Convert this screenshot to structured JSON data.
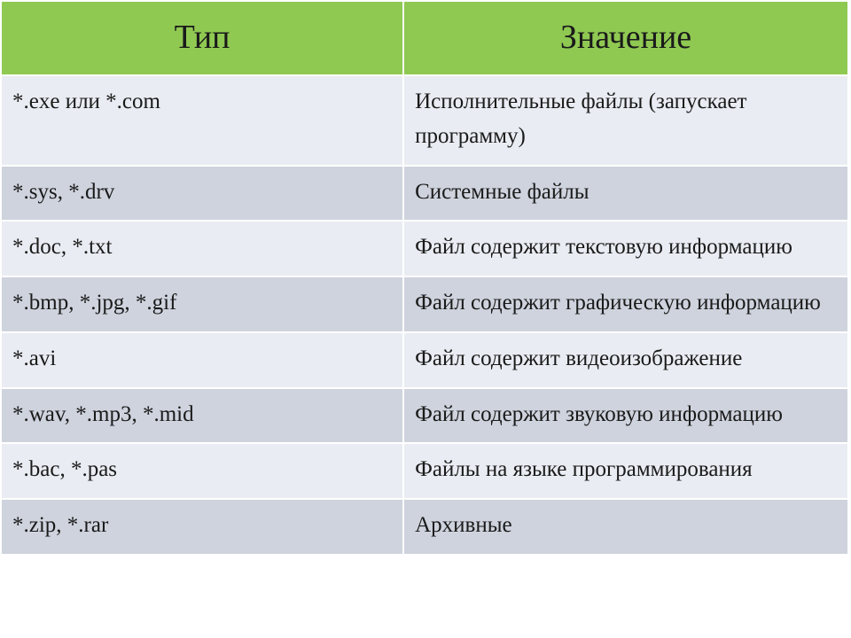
{
  "table": {
    "type": "table",
    "header_bg_color": "#8fc952",
    "header_text_color": "#1a1a1a",
    "row_odd_bg_color": "#e9ecf2",
    "row_even_bg_color": "#ced3dd",
    "cell_text_color": "#1a1a1a",
    "border_color": "#ffffff",
    "header_fontsize": 38,
    "cell_fontsize": 25,
    "column_widths_pct": [
      47.5,
      52.5
    ],
    "columns": [
      "Тип",
      "Значение"
    ],
    "rows": [
      [
        "*.exe или *.com",
        "Исполнительные файлы (запускает программу)"
      ],
      [
        "*.sys, *.drv",
        "Системные файлы"
      ],
      [
        "*.doc, *.txt",
        "Файл содержит текстовую информацию"
      ],
      [
        "*.bmp, *.jpg, *.gif",
        "Файл содержит графическую информацию"
      ],
      [
        "*.avi",
        "Файл содержит видеоизображение"
      ],
      [
        "*.wav, *.mp3, *.mid",
        "Файл содержит звуковую информацию"
      ],
      [
        "*.bac, *.pas",
        "Файлы на языке программирования"
      ],
      [
        "*.zip, *.rar",
        "Архивные"
      ]
    ]
  }
}
